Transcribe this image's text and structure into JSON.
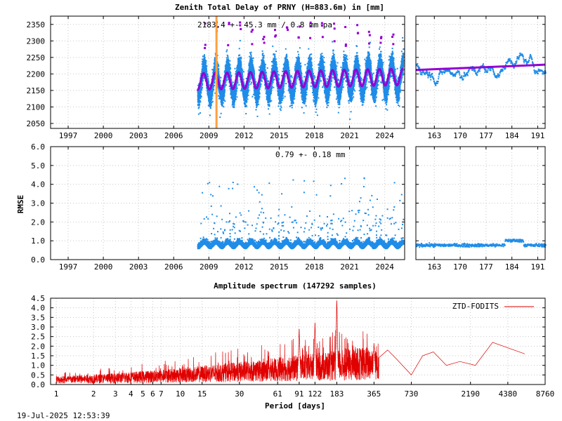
{
  "footer": {
    "timestamp": "19-Jul-2025 12:53:39"
  },
  "chart_data": [
    {
      "id": "ztd-timeseries",
      "type": "scatter",
      "title": "Zenith Total Delay of PRNY (H=883.6m) in [mm]",
      "annotation": "2183.4 +-  45.3 mm /  0.8 mm pa",
      "xlim": [
        1995.5,
        2025.7
      ],
      "ylim": [
        2035,
        2375
      ],
      "x_ticks": [
        "1997",
        "2000",
        "2003",
        "2006",
        "2009",
        "2012",
        "2015",
        "2018",
        "2021",
        "2024"
      ],
      "y_ticks": [
        "2050",
        "2100",
        "2150",
        "2200",
        "2250",
        "2300",
        "2350"
      ],
      "data_start": 2008.0,
      "data_end": 2025.55,
      "mean": 2183.4,
      "amplitude": 45.3,
      "trend_per_year": 0.8,
      "event_line_x": 2009.65,
      "colors": {
        "points": "#1e8ce8",
        "model": "#9400d3",
        "event": "#ffa040"
      }
    },
    {
      "id": "ztd-recent",
      "type": "scatter",
      "x_ticks": [
        "163",
        "170",
        "177",
        "184",
        "191"
      ],
      "xlim": [
        158,
        193
      ],
      "ylim": [
        2035,
        2375
      ],
      "colors": {
        "points": "#1e8ce8",
        "model": "#9400d3"
      }
    },
    {
      "id": "rmse-timeseries",
      "type": "scatter",
      "ylabel": "RMSE",
      "annotation": "0.79 +-  0.18 mm",
      "xlim": [
        1995.5,
        2025.7
      ],
      "ylim": [
        0,
        6
      ],
      "x_ticks": [
        "1997",
        "2000",
        "2003",
        "2006",
        "2009",
        "2012",
        "2015",
        "2018",
        "2021",
        "2024"
      ],
      "y_ticks": [
        "0.0",
        "1.0",
        "2.0",
        "3.0",
        "4.0",
        "5.0",
        "6.0"
      ],
      "mean": 0.79,
      "std": 0.18,
      "colors": {
        "points": "#1e8ce8"
      }
    },
    {
      "id": "rmse-recent",
      "type": "scatter",
      "x_ticks": [
        "163",
        "170",
        "177",
        "184",
        "191"
      ],
      "xlim": [
        158,
        193
      ],
      "ylim": [
        0,
        6
      ],
      "colors": {
        "points": "#1e8ce8"
      }
    },
    {
      "id": "amplitude-spectrum",
      "type": "line",
      "title": "Amplitude spectrum (147292 samples)",
      "xlabel": "Period [days]",
      "x_scale": "log",
      "xlim": [
        0.9,
        8760
      ],
      "ylim": [
        0,
        4.5
      ],
      "x_ticks": [
        "1",
        "2",
        "3",
        "4",
        "5",
        "6",
        "7",
        "10",
        "15",
        "30",
        "61",
        "91",
        "122",
        "183",
        "365",
        "730",
        "2190",
        "4380",
        "8760"
      ],
      "y_ticks": [
        "0.0",
        "0.5",
        "1.0",
        "1.5",
        "2.0",
        "2.5",
        "3.0",
        "3.5",
        "4.0",
        "4.5"
      ],
      "series": [
        {
          "name": "ZTD-FODITS",
          "color": "#e00000"
        }
      ],
      "peaks": [
        {
          "period": 183,
          "amplitude": 4.5
        },
        {
          "period": 122,
          "amplitude": 3.3
        },
        {
          "period": 91,
          "amplitude": 3.0
        },
        {
          "period": 365,
          "amplitude": 2.2
        },
        {
          "period": 3000,
          "amplitude": 2.2
        }
      ],
      "tail": [
        [
          400,
          1.4
        ],
        [
          470,
          1.8
        ],
        [
          560,
          1.3
        ],
        [
          730,
          0.5
        ],
        [
          900,
          1.5
        ],
        [
          1100,
          1.7
        ],
        [
          1400,
          1.0
        ],
        [
          1800,
          1.2
        ],
        [
          2400,
          1.0
        ],
        [
          3300,
          2.2
        ],
        [
          6000,
          1.6
        ]
      ]
    }
  ]
}
